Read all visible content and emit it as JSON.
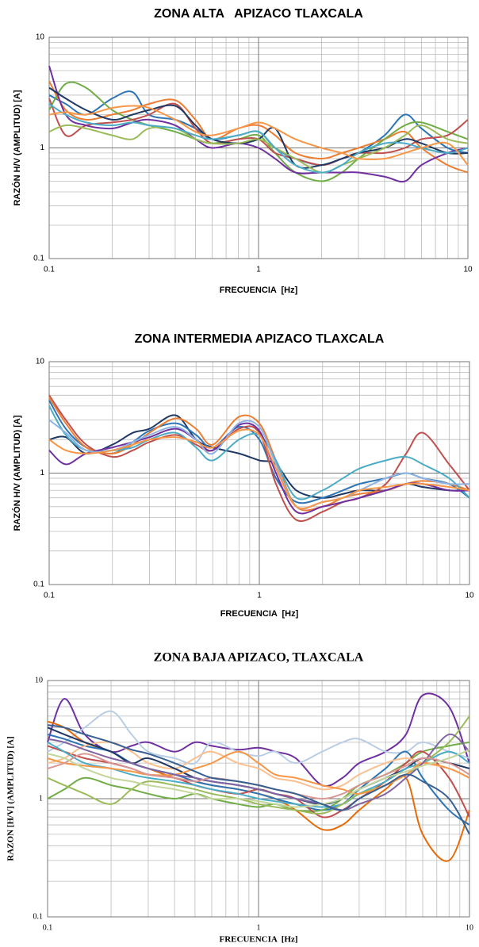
{
  "chart_data": [
    {
      "type": "line",
      "title": "ZONA ALTA   APIZACO TLAXCALA",
      "xlabel": "FRECUENCIA  [Hz]",
      "ylabel": "RAZÓN H/V (AMPLITUD) [A]",
      "log_x": true,
      "log_y": true,
      "grid": true,
      "xlim": [
        0.1,
        10
      ],
      "ylim": [
        0.1,
        10
      ],
      "xticks": [
        0.1,
        1,
        10
      ],
      "yticks": [
        0.1,
        1,
        10
      ],
      "xminor": [
        0.2,
        0.3,
        0.4,
        0.5,
        0.6,
        0.7,
        0.8,
        0.9,
        2,
        3,
        4,
        5,
        6,
        7,
        8,
        9
      ],
      "yminor": [
        0.2,
        0.3,
        0.4,
        0.5,
        0.6,
        0.7,
        0.8,
        0.9,
        2,
        3,
        4,
        5,
        6,
        7,
        8,
        9
      ],
      "x": [
        0.1,
        0.12,
        0.15,
        0.2,
        0.25,
        0.3,
        0.4,
        0.5,
        0.6,
        0.8,
        1,
        1.2,
        1.5,
        2,
        2.5,
        3,
        4,
        5,
        6,
        8,
        10
      ],
      "series": [
        {
          "color": "#2e75b6",
          "values": [
            3.0,
            2.5,
            2.0,
            2.8,
            3.2,
            2.0,
            1.8,
            1.5,
            1.2,
            1.3,
            1.4,
            1.0,
            0.8,
            0.7,
            0.8,
            0.9,
            1.3,
            2.0,
            1.5,
            1.0,
            0.9
          ]
        },
        {
          "color": "#ed7d31",
          "values": [
            4.0,
            2.2,
            1.8,
            2.0,
            2.2,
            2.5,
            2.7,
            1.8,
            1.2,
            1.5,
            1.6,
            1.3,
            0.9,
            0.8,
            0.9,
            1.0,
            1.2,
            1.4,
            1.0,
            0.7,
            0.6
          ]
        },
        {
          "color": "#70ad47",
          "values": [
            2.2,
            3.8,
            3.5,
            2.2,
            1.8,
            1.6,
            1.4,
            1.2,
            1.1,
            1.2,
            1.3,
            0.9,
            0.6,
            0.5,
            0.6,
            0.8,
            1.2,
            1.6,
            1.7,
            1.4,
            1.2
          ]
        },
        {
          "color": "#c0504d",
          "values": [
            2.8,
            1.3,
            1.6,
            1.7,
            1.8,
            2.0,
            2.5,
            1.5,
            1.1,
            1.2,
            1.2,
            0.9,
            0.8,
            0.7,
            0.8,
            0.9,
            0.9,
            1.0,
            1.2,
            1.3,
            1.8
          ]
        },
        {
          "color": "#7030a0",
          "values": [
            5.5,
            2.0,
            1.6,
            1.5,
            1.7,
            1.8,
            1.6,
            1.2,
            1.0,
            1.1,
            1.0,
            0.8,
            0.6,
            0.6,
            0.6,
            0.6,
            0.55,
            0.5,
            0.7,
            0.9,
            1.0
          ]
        },
        {
          "color": "#1f3864",
          "values": [
            3.5,
            2.8,
            2.2,
            1.8,
            2.0,
            2.2,
            2.4,
            1.6,
            1.2,
            1.1,
            1.2,
            1.5,
            0.7,
            0.7,
            0.8,
            0.9,
            1.0,
            1.2,
            1.1,
            0.9,
            0.9
          ]
        },
        {
          "color": "#9bbb59",
          "values": [
            1.4,
            1.6,
            1.5,
            1.3,
            1.2,
            1.5,
            1.5,
            1.2,
            1.1,
            1.1,
            1.2,
            1.0,
            0.8,
            0.6,
            0.7,
            0.8,
            1.0,
            1.3,
            1.6,
            1.2,
            1.1
          ]
        },
        {
          "color": "#4bacc6",
          "values": [
            2.5,
            2.0,
            1.7,
            1.6,
            1.7,
            1.6,
            1.5,
            1.3,
            1.2,
            1.3,
            1.4,
            1.0,
            0.7,
            0.6,
            0.7,
            0.9,
            1.1,
            1.1,
            1.0,
            0.9,
            1.0
          ]
        },
        {
          "color": "#f79646",
          "values": [
            2.0,
            2.1,
            2.0,
            2.3,
            2.4,
            2.3,
            1.8,
            1.4,
            1.3,
            1.5,
            1.7,
            1.5,
            1.2,
            1.0,
            0.9,
            0.8,
            0.8,
            0.9,
            1.0,
            1.1,
            0.7
          ]
        }
      ]
    },
    {
      "type": "line",
      "title": "ZONA INTERMEDIA APIZACO TLAXCALA",
      "xlabel": "FRECUENCIA  [Hz]",
      "ylabel": "RAZÓN H/V (AMPLITUD) [A]",
      "log_x": true,
      "log_y": true,
      "grid": true,
      "xlim": [
        0.1,
        10
      ],
      "ylim": [
        0.1,
        10
      ],
      "xticks": [
        0.1,
        1,
        10
      ],
      "yticks": [
        0.1,
        1,
        10
      ],
      "xminor": [
        0.2,
        0.3,
        0.4,
        0.5,
        0.6,
        0.7,
        0.8,
        0.9,
        2,
        3,
        4,
        5,
        6,
        7,
        8,
        9
      ],
      "yminor": [
        0.2,
        0.3,
        0.4,
        0.5,
        0.6,
        0.7,
        0.8,
        0.9,
        2,
        3,
        4,
        5,
        6,
        7,
        8,
        9
      ],
      "x": [
        0.1,
        0.12,
        0.15,
        0.2,
        0.25,
        0.3,
        0.4,
        0.5,
        0.6,
        0.8,
        1,
        1.2,
        1.5,
        2,
        2.5,
        3,
        4,
        5,
        6,
        8,
        10
      ],
      "series": [
        {
          "color": "#1f3864",
          "values": [
            2.0,
            2.1,
            1.5,
            1.8,
            2.3,
            2.5,
            3.3,
            2.0,
            1.7,
            1.5,
            1.3,
            1.2,
            0.7,
            0.6,
            0.65,
            0.7,
            0.7,
            0.8,
            0.75,
            0.7,
            0.7
          ]
        },
        {
          "color": "#2e75b6",
          "values": [
            4.5,
            2.5,
            1.7,
            1.5,
            1.9,
            2.4,
            2.8,
            2.2,
            1.7,
            2.6,
            2.0,
            0.9,
            0.55,
            0.6,
            0.7,
            0.8,
            0.9,
            1.0,
            0.9,
            0.8,
            0.6
          ]
        },
        {
          "color": "#c0504d",
          "values": [
            5.0,
            3.0,
            1.8,
            1.4,
            1.6,
            1.9,
            2.2,
            1.8,
            1.6,
            2.5,
            2.3,
            0.8,
            0.38,
            0.45,
            0.55,
            0.6,
            0.8,
            1.5,
            2.3,
            1.2,
            0.7
          ]
        },
        {
          "color": "#ed7d31",
          "values": [
            4.8,
            2.8,
            1.7,
            1.5,
            1.8,
            2.3,
            3.1,
            2.5,
            1.8,
            3.2,
            2.8,
            1.3,
            0.5,
            0.5,
            0.6,
            0.65,
            0.7,
            0.8,
            0.85,
            0.8,
            0.7
          ]
        },
        {
          "color": "#4bacc6",
          "values": [
            4.0,
            2.2,
            1.6,
            1.6,
            1.7,
            2.0,
            2.3,
            1.7,
            1.3,
            2.0,
            2.2,
            1.3,
            0.6,
            0.7,
            0.9,
            1.1,
            1.3,
            1.4,
            1.2,
            0.9,
            0.6
          ]
        },
        {
          "color": "#7030a0",
          "values": [
            1.6,
            1.2,
            1.5,
            1.7,
            1.9,
            2.1,
            2.5,
            2.0,
            1.6,
            2.7,
            2.4,
            1.0,
            0.45,
            0.5,
            0.55,
            0.6,
            0.7,
            0.8,
            0.8,
            0.7,
            0.7
          ]
        },
        {
          "color": "#8db3e2",
          "values": [
            3.0,
            2.3,
            1.6,
            1.6,
            1.9,
            2.2,
            2.6,
            2.0,
            1.5,
            2.8,
            2.6,
            1.2,
            0.5,
            0.55,
            0.6,
            0.7,
            0.9,
            1.0,
            0.9,
            0.8,
            0.8
          ]
        },
        {
          "color": "#f79646",
          "values": [
            2.0,
            1.6,
            1.5,
            1.6,
            1.8,
            2.0,
            2.1,
            1.9,
            1.7,
            2.4,
            2.2,
            1.1,
            0.5,
            0.55,
            0.6,
            0.7,
            0.75,
            0.8,
            0.8,
            0.75,
            0.7
          ]
        }
      ]
    },
    {
      "type": "line",
      "title": "ZONA BAJA APIZACO, TLAXCALA",
      "xlabel": "FRECUENCIA  [Hz]",
      "ylabel": "RAZON [H/V] (AMPLITUD) [A]",
      "log_x": true,
      "log_y": true,
      "grid": true,
      "xlim": [
        0.1,
        10
      ],
      "ylim": [
        0.1,
        10
      ],
      "xticks": [
        0.1,
        1,
        10
      ],
      "yticks": [
        0.1,
        1,
        10
      ],
      "xminor": [
        0.2,
        0.3,
        0.4,
        0.5,
        0.6,
        0.7,
        0.8,
        0.9,
        2,
        3,
        4,
        5,
        6,
        7,
        8,
        9
      ],
      "yminor": [
        0.2,
        0.3,
        0.4,
        0.5,
        0.6,
        0.7,
        0.8,
        0.9,
        2,
        3,
        4,
        5,
        6,
        7,
        8,
        9
      ],
      "x": [
        0.1,
        0.12,
        0.15,
        0.2,
        0.25,
        0.3,
        0.4,
        0.5,
        0.6,
        0.8,
        1,
        1.2,
        1.5,
        2,
        2.5,
        3,
        4,
        5,
        6,
        8,
        10
      ],
      "series": [
        {
          "color": "#7030a0",
          "values": [
            3.0,
            7.0,
            3.5,
            2.5,
            2.8,
            3.0,
            2.5,
            3.0,
            2.8,
            2.6,
            2.7,
            2.5,
            2.2,
            1.3,
            1.5,
            2.0,
            2.5,
            3.5,
            7.5,
            6.0,
            2.0
          ]
        },
        {
          "color": "#b9cde5",
          "values": [
            2.5,
            3.0,
            4.0,
            5.5,
            3.5,
            2.5,
            2.2,
            2.0,
            3.0,
            2.5,
            2.3,
            2.5,
            2.0,
            2.5,
            3.0,
            3.2,
            2.5,
            2.5,
            3.0,
            2.5,
            2.2
          ]
        },
        {
          "color": "#e46c0a",
          "values": [
            4.5,
            4.0,
            3.0,
            2.5,
            2.0,
            1.8,
            1.5,
            1.4,
            1.3,
            1.2,
            1.1,
            1.0,
            0.8,
            0.55,
            0.6,
            0.8,
            1.2,
            1.5,
            0.5,
            0.3,
            0.8
          ]
        },
        {
          "color": "#2e75b6",
          "values": [
            3.5,
            3.2,
            2.8,
            2.5,
            2.0,
            1.8,
            1.6,
            1.4,
            1.3,
            1.2,
            1.1,
            1.0,
            0.9,
            0.8,
            0.9,
            1.2,
            1.8,
            2.5,
            1.5,
            0.8,
            0.6
          ]
        },
        {
          "color": "#70ad47",
          "values": [
            1.0,
            1.2,
            1.5,
            1.3,
            1.2,
            1.1,
            1.0,
            1.1,
            1.0,
            0.9,
            0.85,
            0.9,
            0.8,
            0.8,
            1.0,
            1.3,
            1.6,
            2.0,
            2.5,
            2.8,
            3.0
          ]
        },
        {
          "color": "#c0504d",
          "values": [
            2.8,
            2.5,
            2.2,
            2.0,
            1.8,
            1.6,
            1.5,
            1.3,
            1.2,
            1.1,
            1.2,
            1.1,
            1.0,
            0.7,
            0.8,
            1.0,
            1.4,
            2.0,
            2.5,
            1.5,
            0.7
          ]
        },
        {
          "color": "#fac090",
          "values": [
            2.0,
            2.2,
            2.8,
            3.0,
            2.5,
            2.0,
            1.8,
            2.2,
            2.5,
            2.0,
            1.8,
            1.5,
            1.4,
            1.2,
            1.3,
            1.6,
            2.0,
            2.2,
            2.0,
            1.8,
            1.5
          ]
        },
        {
          "color": "#1f3864",
          "values": [
            4.0,
            3.5,
            3.0,
            2.5,
            2.0,
            2.2,
            1.8,
            1.5,
            1.4,
            1.3,
            1.2,
            1.1,
            1.0,
            0.9,
            1.0,
            1.2,
            1.5,
            1.8,
            2.2,
            2.0,
            1.8
          ]
        },
        {
          "color": "#4bacc6",
          "values": [
            3.0,
            2.5,
            2.0,
            1.8,
            1.6,
            1.5,
            1.4,
            1.3,
            1.2,
            1.1,
            1.0,
            0.95,
            0.9,
            0.85,
            0.9,
            1.1,
            1.4,
            1.8,
            2.0,
            2.5,
            2.0
          ]
        },
        {
          "color": "#9bbb59",
          "values": [
            1.5,
            1.3,
            1.1,
            0.9,
            1.2,
            1.4,
            1.3,
            1.2,
            1.1,
            1.0,
            0.9,
            0.85,
            0.8,
            0.75,
            0.9,
            1.1,
            1.3,
            1.6,
            2.0,
            3.0,
            5.0
          ]
        },
        {
          "color": "#f79646",
          "values": [
            2.2,
            2.0,
            1.9,
            1.8,
            1.7,
            1.6,
            1.6,
            1.8,
            2.0,
            2.5,
            2.0,
            1.6,
            1.5,
            1.3,
            1.2,
            1.1,
            1.3,
            1.6,
            2.0,
            1.8,
            1.5
          ]
        },
        {
          "color": "#8064a2",
          "values": [
            3.2,
            3.0,
            2.6,
            2.2,
            2.0,
            1.8,
            1.6,
            1.5,
            1.4,
            1.3,
            1.2,
            1.1,
            1.0,
            0.9,
            0.8,
            0.9,
            1.1,
            1.5,
            2.0,
            3.5,
            2.5
          ]
        },
        {
          "color": "#d99694",
          "values": [
            1.8,
            2.0,
            2.4,
            2.0,
            1.8,
            1.6,
            1.5,
            1.4,
            1.5,
            1.4,
            1.3,
            1.2,
            1.1,
            1.0,
            1.1,
            1.3,
            1.6,
            1.9,
            2.2,
            2.0,
            1.6
          ]
        },
        {
          "color": "#c3d69b",
          "values": [
            2.4,
            2.2,
            1.8,
            1.5,
            1.4,
            1.3,
            1.2,
            1.1,
            1.0,
            1.0,
            0.95,
            0.9,
            0.85,
            0.9,
            1.0,
            1.2,
            1.5,
            1.7,
            1.9,
            2.2,
            2.6
          ]
        },
        {
          "color": "#376092",
          "values": [
            4.2,
            4.0,
            3.5,
            3.0,
            2.6,
            2.4,
            2.0,
            1.7,
            1.5,
            1.4,
            1.3,
            1.2,
            1.1,
            0.9,
            0.8,
            1.0,
            1.3,
            1.6,
            1.4,
            1.0,
            0.5
          ]
        }
      ]
    }
  ]
}
